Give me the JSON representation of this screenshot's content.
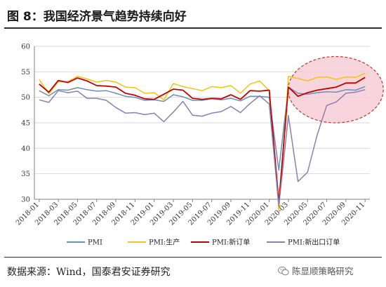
{
  "header": {
    "title": "图 8：我国经济景气趋势持续向好"
  },
  "footer": {
    "source": "数据来源：Wind，国泰君安证券研究",
    "watermark": "陈显顺策略研究"
  },
  "colors": {
    "pmi": "#6b8fb5",
    "production": "#f0c419",
    "new_orders": "#c00000",
    "new_export_orders": "#8a7fb0",
    "highlight_fill": "#f5c6d0",
    "highlight_stroke": "#c0392b",
    "grid": "#d9d9d9"
  },
  "chart_data": {
    "type": "line",
    "x": [
      "2018-01",
      "2018-02",
      "2018-03",
      "2018-04",
      "2018-05",
      "2018-06",
      "2018-07",
      "2018-08",
      "2018-09",
      "2018-10",
      "2018-11",
      "2018-12",
      "2019-01",
      "2019-02",
      "2019-03",
      "2019-04",
      "2019-05",
      "2019-06",
      "2019-07",
      "2019-08",
      "2019-09",
      "2019-10",
      "2019-11",
      "2019-12",
      "2020-01",
      "2020-02",
      "2020-03",
      "2020-04",
      "2020-05",
      "2020-06",
      "2020-07",
      "2020-08",
      "2020-09",
      "2020-10",
      "2020-11"
    ],
    "x_tick_labels": [
      "2018-01",
      "2018-03",
      "2018-05",
      "2018-07",
      "2018-09",
      "2018-11",
      "2019-01",
      "2019-03",
      "2019-05",
      "2019-07",
      "2019-09",
      "2019-11",
      "2020-01",
      "2020-03",
      "2020-05",
      "2020-07",
      "2020-09",
      "2020-11"
    ],
    "ylim": [
      30,
      60
    ],
    "y_ticks": [
      30,
      35,
      40,
      45,
      50,
      55,
      60
    ],
    "grid": "horizontal",
    "legend_position": "bottom",
    "series": [
      {
        "name": "PMI",
        "color_key": "pmi",
        "values": [
          51.3,
          50.3,
          51.5,
          51.4,
          51.9,
          51.5,
          51.2,
          51.3,
          50.8,
          50.2,
          50.0,
          49.4,
          49.5,
          49.2,
          50.5,
          50.1,
          49.4,
          49.4,
          49.7,
          49.5,
          49.8,
          49.3,
          50.2,
          50.2,
          50.0,
          35.7,
          52.0,
          50.8,
          50.6,
          50.9,
          51.1,
          51.0,
          51.5,
          51.4,
          52.1
        ]
      },
      {
        "name": "PMI:生产",
        "color_key": "production",
        "values": [
          53.5,
          50.7,
          53.1,
          53.1,
          54.1,
          53.6,
          53.0,
          53.3,
          53.0,
          52.0,
          51.9,
          50.8,
          50.9,
          49.5,
          52.7,
          52.1,
          51.7,
          51.3,
          52.1,
          51.9,
          52.3,
          50.8,
          52.6,
          53.2,
          51.3,
          27.8,
          54.1,
          53.7,
          53.2,
          53.9,
          54.0,
          53.5,
          54.0,
          53.9,
          54.7
        ]
      },
      {
        "name": "PMI:新订单",
        "color_key": "new_orders",
        "values": [
          52.6,
          51.0,
          53.3,
          52.9,
          53.8,
          53.2,
          52.3,
          52.2,
          52.0,
          50.8,
          50.4,
          49.7,
          49.6,
          50.6,
          51.6,
          51.4,
          49.8,
          49.6,
          49.8,
          49.7,
          50.5,
          49.6,
          51.3,
          51.2,
          51.4,
          29.3,
          52.0,
          50.2,
          50.9,
          51.4,
          51.7,
          52.0,
          52.8,
          52.8,
          53.9
        ]
      },
      {
        "name": "PMI:新出口订单",
        "color_key": "new_export_orders",
        "values": [
          49.5,
          49.0,
          51.3,
          50.9,
          51.2,
          49.8,
          49.8,
          49.4,
          48.0,
          46.9,
          47.0,
          46.6,
          46.9,
          45.2,
          47.1,
          49.2,
          46.5,
          46.3,
          46.9,
          47.2,
          48.2,
          47.0,
          48.8,
          50.3,
          48.7,
          28.7,
          46.4,
          33.5,
          35.3,
          42.6,
          48.4,
          49.1,
          50.8,
          51.0,
          51.5
        ]
      }
    ]
  }
}
